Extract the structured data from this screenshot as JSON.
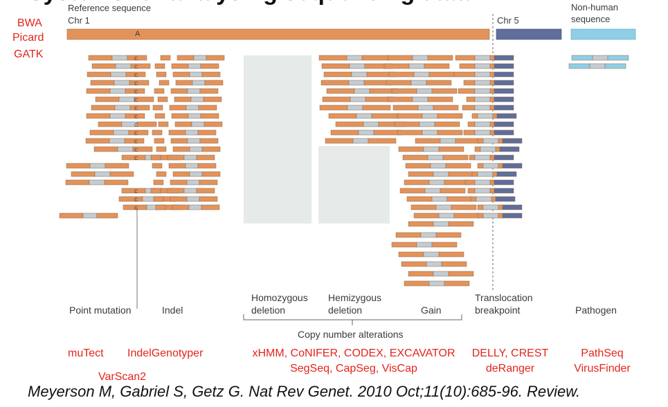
{
  "slide_title": "Systems for analysing sequencing data",
  "aligners": [
    "BWA",
    "Picard",
    "GATK"
  ],
  "reference_label": "Reference sequence",
  "chr1_label": "Chr 1",
  "chr5_label": "Chr 5",
  "nonhuman_label": "Non-human\nsequence",
  "point_allele": "A",
  "variant_base": "C",
  "categories": {
    "point_mutation": "Point mutation",
    "indel": "Indel",
    "homozygous_deletion": "Homozygous\ndeletion",
    "hemizygous_deletion": "Hemizygous\ndeletion",
    "gain": "Gain",
    "translocation": "Translocation\nbreakpoint",
    "pathogen": "Pathogen",
    "copy_number_alterations": "Copy number alterations"
  },
  "tools": {
    "point_mutation": [
      "muTect",
      "",
      "VarScan2"
    ],
    "indel": [
      "IndelGenotyper"
    ],
    "copy_number": [
      "xHMM, CoNIFER, CODEX, EXCAVATOR",
      "SegSeq, CapSeg, VisCap"
    ],
    "translocation": [
      "DELLY, CREST",
      "deRanger"
    ],
    "pathogen": [
      "PathSeq",
      "VirusFinder"
    ]
  },
  "citation": "Meyerson M, Gabriel S, Getz G. Nat Rev Genet. 2010 Oct;11(10):685-96. Review.",
  "colors": {
    "read_orange": "#e3935a",
    "read_gray": "#c3ccd2",
    "chr5_blue": "#5f6e9a",
    "pathogen_blue": "#8fcfe6",
    "deletion_box": "#e6ebea",
    "tool_red": "#e3241b"
  }
}
